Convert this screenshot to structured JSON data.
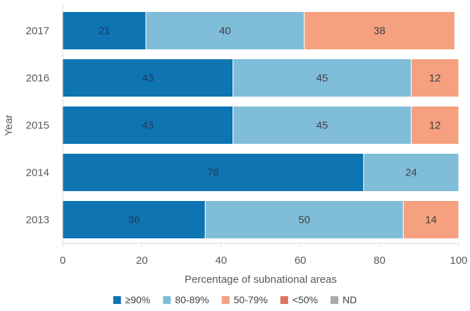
{
  "chart_data": {
    "type": "bar",
    "orientation": "horizontal",
    "stacked": true,
    "categories": [
      "2017",
      "2016",
      "2015",
      "2014",
      "2013"
    ],
    "series": [
      {
        "name": "≥90%",
        "color": "#0e74b2",
        "values": [
          21,
          43,
          43,
          76,
          36
        ]
      },
      {
        "name": "80-89%",
        "color": "#7fbdd9",
        "values": [
          40,
          45,
          45,
          24,
          50
        ]
      },
      {
        "name": "50-79%",
        "color": "#f5a07e",
        "values": [
          38,
          12,
          12,
          0,
          14
        ]
      },
      {
        "name": "<50%",
        "color": "#e07461",
        "values": [
          0,
          0,
          0,
          0,
          0
        ]
      },
      {
        "name": "ND",
        "color": "#ababab",
        "values": [
          0,
          0,
          0,
          0,
          0
        ]
      }
    ],
    "xlabel": "Percentage of subnational areas",
    "ylabel": "Year",
    "xlim": [
      0,
      100
    ],
    "xticks": [
      0,
      20,
      40,
      60,
      80,
      100
    ],
    "grid": false,
    "legend_position": "bottom",
    "label_colors": [
      "#1f3a5f",
      "#404040",
      "#404040",
      "#404040",
      "#404040"
    ]
  }
}
